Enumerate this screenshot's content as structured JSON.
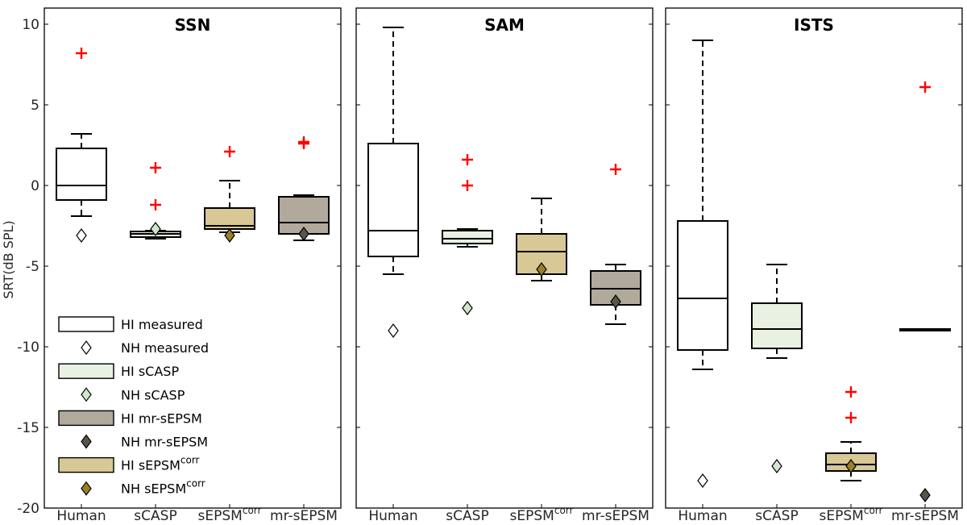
{
  "chart_data": {
    "type": "boxplot",
    "ylabel": "SRT(dB SPL)",
    "ylim": [
      -20,
      11
    ],
    "yticks": [
      10,
      5,
      0,
      -5,
      -10,
      -15,
      -20
    ],
    "ytick_labels": [
      "10",
      "5",
      "0",
      "-5",
      "-10",
      "-15",
      "-20"
    ],
    "categories": [
      {
        "label": "Human",
        "sup": ""
      },
      {
        "label": "sCASP",
        "sup": ""
      },
      {
        "label": "sEPSM",
        "sup": "corr"
      },
      {
        "label": "mr-sEPSM",
        "sup": ""
      }
    ],
    "colors": {
      "Human": "#ffffff",
      "sCASP": "#e9f1e3",
      "sEPSM": "#d8c896",
      "mr-sEPSM": "#b1aa9c",
      "nh_Human": "#ffffff",
      "nh_sCASP": "#cfe8c9",
      "nh_sEPSM": "#9a7e2a",
      "nh_mr-sEPSM": "#5b544a",
      "outlier": "#ff0000"
    },
    "panels": [
      {
        "title": "SSN",
        "boxes": [
          {
            "model": "Human",
            "whisker_low": -1.9,
            "q1": -0.9,
            "median": 0.0,
            "q3": 2.3,
            "whisker_high": 3.2,
            "outliers": [
              8.2
            ],
            "nh": -3.1
          },
          {
            "model": "sCASP",
            "whisker_low": -3.3,
            "q1": -3.2,
            "median": -3.0,
            "q3": -2.85,
            "whisker_high": -2.8,
            "outliers": [
              1.1,
              -1.2
            ],
            "nh": -2.7
          },
          {
            "model": "sEPSM",
            "whisker_low": -2.9,
            "q1": -2.7,
            "median": -2.5,
            "q3": -1.4,
            "whisker_high": 0.3,
            "outliers": [
              2.1
            ],
            "nh": -3.1
          },
          {
            "model": "mr-sEPSM",
            "whisker_low": -3.4,
            "q1": -3.0,
            "median": -2.3,
            "q3": -0.7,
            "whisker_high": -0.6,
            "outliers": [
              2.6,
              2.7
            ],
            "nh": -3.0
          }
        ]
      },
      {
        "title": "SAM",
        "boxes": [
          {
            "model": "Human",
            "whisker_low": -5.5,
            "q1": -4.4,
            "median": -2.8,
            "q3": 2.6,
            "whisker_high": 9.8,
            "outliers": [],
            "nh": -9.0
          },
          {
            "model": "sCASP",
            "whisker_low": -3.8,
            "q1": -3.6,
            "median": -3.3,
            "q3": -2.8,
            "whisker_high": -2.7,
            "outliers": [
              1.6,
              0.0
            ],
            "nh": -7.6
          },
          {
            "model": "sEPSM",
            "whisker_low": -5.9,
            "q1": -5.5,
            "median": -4.1,
            "q3": -3.0,
            "whisker_high": -0.8,
            "outliers": [],
            "nh": -5.2
          },
          {
            "model": "mr-sEPSM",
            "whisker_low": -8.6,
            "q1": -7.4,
            "median": -6.4,
            "q3": -5.3,
            "whisker_high": -4.9,
            "outliers": [
              1.0
            ],
            "nh": -7.2
          }
        ]
      },
      {
        "title": "ISTS",
        "boxes": [
          {
            "model": "Human",
            "whisker_low": -11.4,
            "q1": -10.2,
            "median": -7.0,
            "q3": -2.2,
            "whisker_high": 9.0,
            "outliers": [],
            "nh": -18.3
          },
          {
            "model": "sCASP",
            "whisker_low": -10.7,
            "q1": -10.1,
            "median": -8.9,
            "q3": -7.3,
            "whisker_high": -4.9,
            "outliers": [],
            "nh": -17.4
          },
          {
            "model": "sEPSM",
            "whisker_low": -18.3,
            "q1": -17.7,
            "median": -17.3,
            "q3": -16.6,
            "whisker_high": -15.9,
            "outliers": [
              -12.8,
              -14.4
            ],
            "nh": -17.4
          },
          {
            "model": "mr-sEPSM",
            "whisker_low": -9.0,
            "q1": -9.0,
            "median": -8.9,
            "q3": -8.9,
            "whisker_high": -8.9,
            "outliers": [
              6.1
            ],
            "nh": -19.2
          }
        ]
      }
    ],
    "legend": {
      "placement": "lower-left",
      "entries": [
        {
          "kind": "box",
          "model": "Human",
          "label": "HI measured",
          "sup": ""
        },
        {
          "kind": "diamond",
          "model": "Human",
          "label": "NH measured",
          "sup": ""
        },
        {
          "kind": "box",
          "model": "sCASP",
          "label": "HI sCASP",
          "sup": ""
        },
        {
          "kind": "diamond",
          "model": "sCASP",
          "label": "NH  sCASP",
          "sup": ""
        },
        {
          "kind": "box",
          "model": "mr-sEPSM",
          "label": "HI mr-sEPSM",
          "sup": ""
        },
        {
          "kind": "diamond",
          "model": "mr-sEPSM",
          "label": "NH mr-sEPSM",
          "sup": ""
        },
        {
          "kind": "box",
          "model": "sEPSM",
          "label": "HI sEPSM",
          "sup": "corr"
        },
        {
          "kind": "diamond",
          "model": "sEPSM",
          "label": "NH sEPSM",
          "sup": "corr"
        }
      ]
    }
  }
}
